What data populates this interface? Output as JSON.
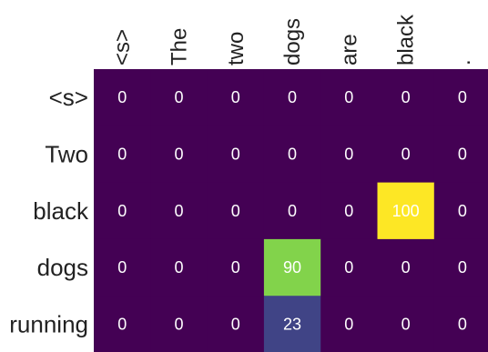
{
  "chart_data": {
    "type": "heatmap",
    "columns": [
      "<s>",
      "The",
      "two",
      "dogs",
      "are",
      "black",
      "."
    ],
    "rows": [
      "<s>",
      "Two",
      "black",
      "dogs",
      "running"
    ],
    "values": [
      [
        0,
        0,
        0,
        0,
        0,
        0,
        0
      ],
      [
        0,
        0,
        0,
        0,
        0,
        0,
        0
      ],
      [
        0,
        0,
        0,
        0,
        0,
        100,
        0
      ],
      [
        0,
        0,
        0,
        90,
        0,
        0,
        0
      ],
      [
        0,
        0,
        0,
        23,
        0,
        0,
        0
      ]
    ],
    "value_range": [
      0,
      100
    ],
    "colormap": "viridis",
    "colors": {
      "low": "#440154",
      "mid": "#3e4a89",
      "high_mid": "#bddf26",
      "high": "#fde725"
    },
    "legend": "none",
    "grid": false
  }
}
